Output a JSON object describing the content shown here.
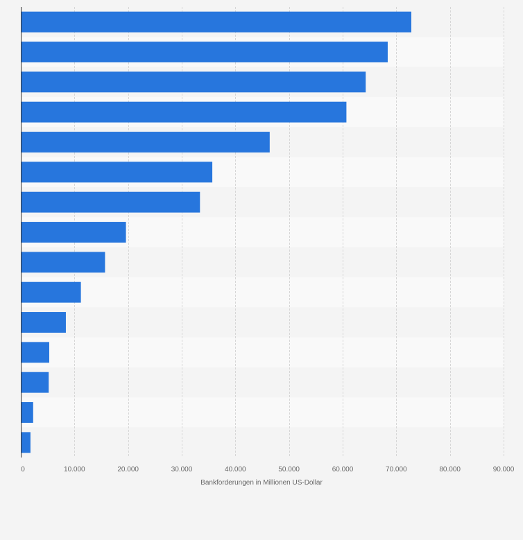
{
  "chart_data": {
    "type": "bar",
    "orientation": "horizontal",
    "title": "",
    "xlabel": "Bankforderungen in Millionen US-Dollar",
    "ylabel": "",
    "xlim": [
      0,
      90000
    ],
    "xticks": [
      0,
      10000,
      20000,
      30000,
      40000,
      50000,
      60000,
      70000,
      80000,
      90000
    ],
    "xtick_labels": [
      "0",
      "10.000",
      "20.000",
      "30.000",
      "40.000",
      "50.000",
      "60.000",
      "70.000",
      "80.000",
      "90.000"
    ],
    "categories": [
      "",
      "",
      "",
      "",
      "",
      "",
      "",
      "",
      "",
      "",
      "",
      "",
      "",
      "",
      ""
    ],
    "values": [
      72800,
      68400,
      64300,
      60700,
      46400,
      35700,
      33400,
      19600,
      15700,
      11200,
      8400,
      5300,
      5200,
      2300,
      1800
    ],
    "bar_color": "#2776dd",
    "background_colors": [
      "#f4f4f4",
      "#f9f9f9"
    ],
    "grid": true,
    "grid_color": "#d6d6d6",
    "axis_color": "#333333",
    "legend": "none"
  }
}
